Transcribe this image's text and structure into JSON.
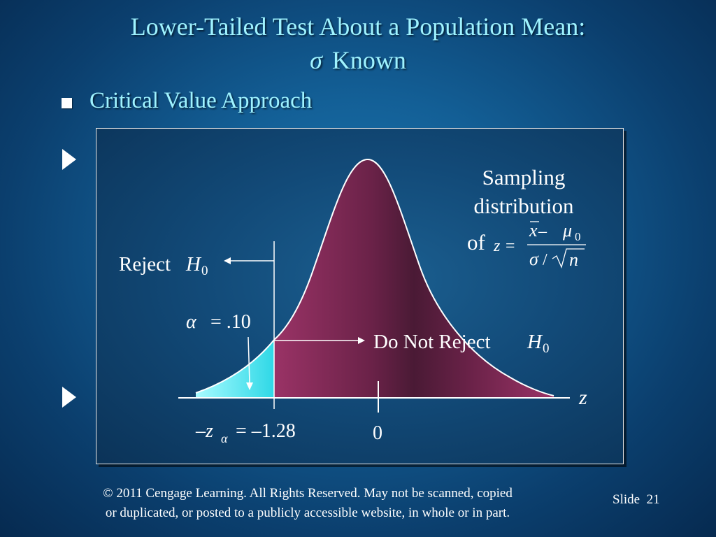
{
  "title": {
    "line1": "Lower-Tailed Test About a Population Mean:",
    "sigma_symbol": "σ",
    "line2_text": "Known"
  },
  "bullet": {
    "text": "Critical Value Approach"
  },
  "diagram": {
    "sampling_label_line1": "Sampling",
    "sampling_label_line2": "distribution",
    "sampling_label_of": "of",
    "formula": {
      "lhs": "z =",
      "numerator_xbar": "x",
      "numerator_minus": " – ",
      "numerator_mu": "μ",
      "numerator_mu_sub": "0",
      "denominator_sigma": "σ",
      "denominator_slash": "/",
      "denominator_n": "n"
    },
    "reject_label": "Reject",
    "reject_h": "H",
    "reject_h_sub": "0",
    "alpha_symbol": "α",
    "alpha_value": "= .10",
    "do_not_reject_label": "Do Not Reject",
    "dnr_h": "H",
    "dnr_h_sub": "0",
    "axis_label": "z",
    "critical_prefix": "–z",
    "critical_sub": "α",
    "critical_value": "= –1.28",
    "zero_label": "0"
  },
  "colors": {
    "curve_fill_dark": "#4a1a35",
    "curve_fill_light": "#8e2e5e",
    "reject_fill": "#45e8f0",
    "title_color": "#9ff3ff"
  },
  "footer": {
    "line1": "© 2011  Cengage Learning.  All Rights Reserved.  May not be scanned, copied",
    "line2": "or duplicated, or posted to a publicly accessible website, in whole or in part."
  },
  "slide": {
    "label": "Slide",
    "number": "21"
  }
}
